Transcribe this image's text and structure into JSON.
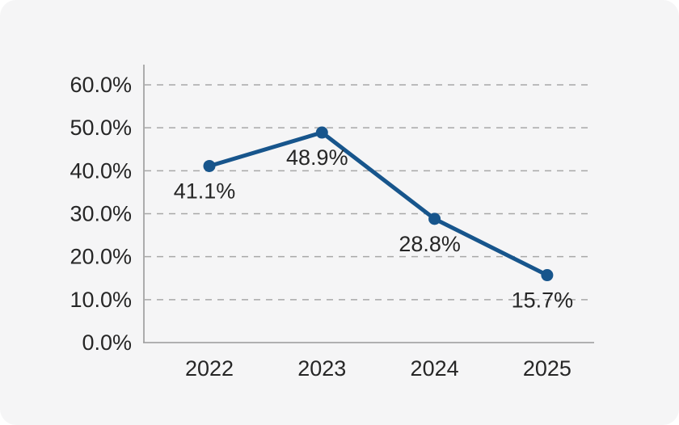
{
  "colors": {
    "card_background": "#f5f5f6",
    "page_background": "#ffffff",
    "series_line": "#17558c",
    "marker_fill": "#17558c",
    "axis_line": "#9a9a9a",
    "gridline": "#a8a8a8",
    "text": "#262626"
  },
  "chart_data": {
    "type": "line",
    "title": "",
    "xlabel": "",
    "ylabel": "",
    "categories": [
      "2022",
      "2023",
      "2024",
      "2025"
    ],
    "series": [
      {
        "name": "percentage",
        "values": [
          41.1,
          48.9,
          28.8,
          15.7
        ],
        "data_labels": [
          "41.1%",
          "48.9%",
          "28.8%",
          "15.7%"
        ]
      }
    ],
    "y_ticks": [
      {
        "value": 0,
        "label": "0.0%"
      },
      {
        "value": 10,
        "label": "10.0%"
      },
      {
        "value": 20,
        "label": "20.0%"
      },
      {
        "value": 30,
        "label": "30.0%"
      },
      {
        "value": 40,
        "label": "40.0%"
      },
      {
        "value": 50,
        "label": "50.0%"
      },
      {
        "value": 60,
        "label": "60.0%"
      }
    ],
    "ylim": [
      0,
      60
    ],
    "grid": "horizontal-dashed",
    "legend": "none",
    "markers": "filled-circle"
  }
}
